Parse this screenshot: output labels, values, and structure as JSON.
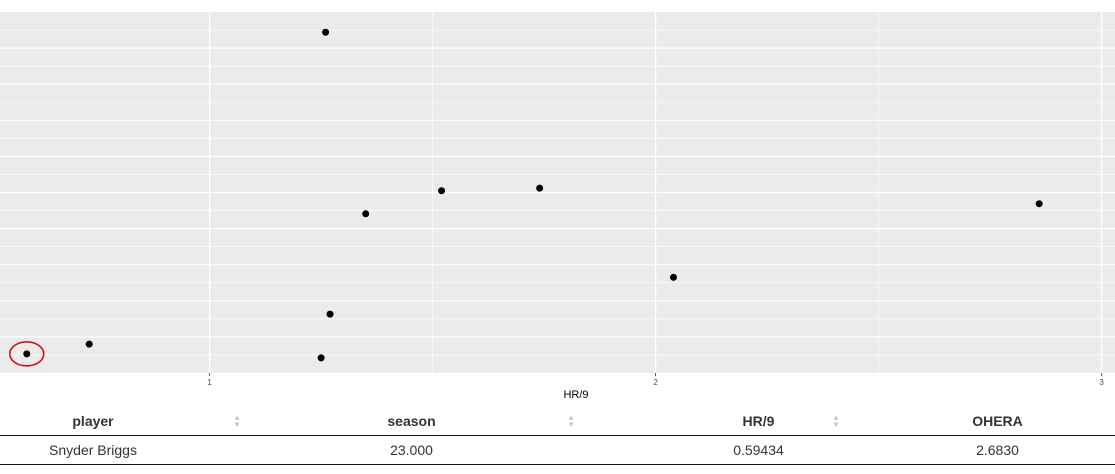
{
  "chart_data": {
    "type": "scatter",
    "title": "",
    "xlabel": "HR/9",
    "ylabel": "",
    "xlim": [
      0.53,
      3.03
    ],
    "ylim": [
      0,
      10
    ],
    "x_ticks": [
      "1",
      "2",
      "3"
    ],
    "x_tick_values": [
      1,
      2,
      3
    ],
    "grid": true,
    "background": "#ebebeb",
    "gridline_color": "#ffffff",
    "point_color": "#000000",
    "highlight_color": "#e00000",
    "points": [
      {
        "x": 0.59,
        "y": 0.53,
        "highlighted": true
      },
      {
        "x": 0.73,
        "y": 0.8
      },
      {
        "x": 1.25,
        "y": 0.42
      },
      {
        "x": 1.27,
        "y": 1.63
      },
      {
        "x": 1.26,
        "y": 9.44
      },
      {
        "x": 1.35,
        "y": 4.41
      },
      {
        "x": 1.52,
        "y": 5.05
      },
      {
        "x": 1.74,
        "y": 5.12
      },
      {
        "x": 2.04,
        "y": 2.65
      },
      {
        "x": 2.86,
        "y": 4.69
      }
    ]
  },
  "table": {
    "headers": [
      "player",
      "season",
      "HR/9",
      "OHERA"
    ],
    "sortable": [
      true,
      true,
      true,
      false
    ],
    "sort_icon": "sort-arrows-icon",
    "rows": [
      [
        "Snyder Briggs",
        "23.000",
        "0.59434",
        "2.6830"
      ]
    ]
  }
}
